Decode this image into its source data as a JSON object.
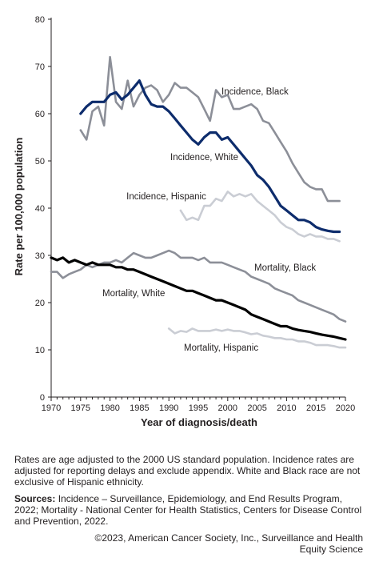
{
  "chart_data": {
    "type": "line",
    "xlabel": "Year of diagnosis/death",
    "ylabel": "Rate per 100,000 population",
    "xlim": [
      1970,
      2020
    ],
    "ylim": [
      0,
      80
    ],
    "x_ticks": [
      1970,
      1975,
      1980,
      1985,
      1990,
      1995,
      2000,
      2005,
      2010,
      2015,
      2020
    ],
    "y_ticks": [
      0,
      10,
      20,
      30,
      40,
      50,
      60,
      70,
      80
    ],
    "grid": false,
    "series": [
      {
        "name": "Incidence, Black",
        "color": "#8c8f98",
        "width": 2.6,
        "label_anchor": "start",
        "x": [
          1975,
          1976,
          1977,
          1978,
          1979,
          1980,
          1981,
          1982,
          1983,
          1984,
          1985,
          1986,
          1987,
          1988,
          1989,
          1990,
          1991,
          1992,
          1993,
          1994,
          1995,
          1996,
          1997,
          1998,
          1999,
          2000,
          2001,
          2002,
          2003,
          2004,
          2005,
          2006,
          2007,
          2008,
          2009,
          2010,
          2011,
          2012,
          2013,
          2014,
          2015,
          2016,
          2017,
          2018,
          2019
        ],
        "y": [
          56.5,
          54.5,
          60.5,
          61.5,
          57.5,
          72,
          62.5,
          61,
          67,
          61.5,
          64,
          65.5,
          66,
          65,
          62.5,
          64,
          66.5,
          65.5,
          65.5,
          64.5,
          63.5,
          61,
          58.5,
          65,
          63.5,
          64,
          61,
          61,
          61.5,
          62,
          61,
          58.5,
          58,
          56,
          54,
          52,
          49.5,
          47.5,
          45.5,
          44.5,
          44,
          44,
          41.5,
          41.5,
          41.5
        ]
      },
      {
        "name": "Incidence, White",
        "color": "#0d2c6c",
        "width": 3.2,
        "label_anchor": "start",
        "x": [
          1975,
          1976,
          1977,
          1978,
          1979,
          1980,
          1981,
          1982,
          1983,
          1984,
          1985,
          1986,
          1987,
          1988,
          1989,
          1990,
          1991,
          1992,
          1993,
          1994,
          1995,
          1996,
          1997,
          1998,
          1999,
          2000,
          2001,
          2002,
          2003,
          2004,
          2005,
          2006,
          2007,
          2008,
          2009,
          2010,
          2011,
          2012,
          2013,
          2014,
          2015,
          2016,
          2017,
          2018,
          2019
        ],
        "y": [
          60,
          61.5,
          62.5,
          62.5,
          62.5,
          64,
          64.5,
          63,
          64,
          65.5,
          67,
          64,
          62,
          61.5,
          61.5,
          60.5,
          59,
          57.5,
          56,
          54.5,
          53.5,
          55,
          56,
          56,
          54.5,
          55,
          53.5,
          52,
          50.5,
          49,
          47,
          46,
          44.5,
          42.5,
          40.5,
          39.5,
          38.5,
          37.5,
          37.5,
          37,
          36,
          35.5,
          35.2,
          35,
          35
        ]
      },
      {
        "name": "Incidence, Hispanic",
        "color": "#cacdd4",
        "width": 2.6,
        "label_anchor": "middle",
        "x": [
          1992,
          1993,
          1994,
          1995,
          1996,
          1997,
          1998,
          1999,
          2000,
          2001,
          2002,
          2003,
          2004,
          2005,
          2006,
          2007,
          2008,
          2009,
          2010,
          2011,
          2012,
          2013,
          2014,
          2015,
          2016,
          2017,
          2018,
          2019
        ],
        "y": [
          39.5,
          37.5,
          38,
          37.5,
          40.5,
          40.5,
          42,
          41.5,
          43.5,
          42.5,
          43,
          42.5,
          43,
          41.5,
          40.5,
          39.5,
          38.5,
          37,
          36,
          35.5,
          34.5,
          34,
          34.5,
          34,
          34,
          33.5,
          33.5,
          33
        ]
      },
      {
        "name": "Mortality, Black",
        "color": "#8c8f98",
        "width": 2.6,
        "label_anchor": "start",
        "x": [
          1970,
          1971,
          1972,
          1973,
          1974,
          1975,
          1976,
          1977,
          1978,
          1979,
          1980,
          1981,
          1982,
          1983,
          1984,
          1985,
          1986,
          1987,
          1988,
          1989,
          1990,
          1991,
          1992,
          1993,
          1994,
          1995,
          1996,
          1997,
          1998,
          1999,
          2000,
          2001,
          2002,
          2003,
          2004,
          2005,
          2006,
          2007,
          2008,
          2009,
          2010,
          2011,
          2012,
          2013,
          2014,
          2015,
          2016,
          2017,
          2018,
          2019,
          2020
        ],
        "y": [
          26.5,
          26.5,
          25.2,
          26,
          26.5,
          27,
          28,
          27.5,
          28,
          28.5,
          28.5,
          29,
          28.5,
          29.5,
          30.5,
          30,
          29.5,
          29.5,
          30,
          30.5,
          31,
          30.5,
          29.5,
          29.5,
          29.5,
          29,
          29.5,
          28.5,
          28.5,
          28.5,
          28,
          27.5,
          27,
          26.5,
          25.5,
          25,
          24.5,
          24,
          23,
          22.5,
          22,
          21.5,
          20.5,
          20,
          19.5,
          19,
          18.5,
          18,
          17.5,
          16.5,
          16
        ]
      },
      {
        "name": "Mortality, White",
        "color": "#000000",
        "width": 3.2,
        "label_anchor": "start",
        "x": [
          1970,
          1971,
          1972,
          1973,
          1974,
          1975,
          1976,
          1977,
          1978,
          1979,
          1980,
          1981,
          1982,
          1983,
          1984,
          1985,
          1986,
          1987,
          1988,
          1989,
          1990,
          1991,
          1992,
          1993,
          1994,
          1995,
          1996,
          1997,
          1998,
          1999,
          2000,
          2001,
          2002,
          2003,
          2004,
          2005,
          2006,
          2007,
          2008,
          2009,
          2010,
          2011,
          2012,
          2013,
          2014,
          2015,
          2016,
          2017,
          2018,
          2019,
          2020
        ],
        "y": [
          29.5,
          29,
          29.5,
          28.5,
          29,
          28.5,
          28,
          28.5,
          28,
          28,
          28,
          27.5,
          27.5,
          27,
          27,
          26.5,
          26,
          25.5,
          25,
          24.5,
          24,
          23.5,
          23,
          22.5,
          22.5,
          22,
          21.5,
          21,
          20.5,
          20.5,
          20,
          19.5,
          19,
          18.5,
          17.5,
          17,
          16.5,
          16,
          15.5,
          15,
          15,
          14.5,
          14.2,
          14,
          13.8,
          13.5,
          13.2,
          13,
          12.8,
          12.5,
          12.2
        ]
      },
      {
        "name": "Mortality, Hispanic",
        "color": "#cacdd4",
        "width": 2.6,
        "label_anchor": "start",
        "x": [
          1990,
          1991,
          1992,
          1993,
          1994,
          1995,
          1996,
          1997,
          1998,
          1999,
          2000,
          2001,
          2002,
          2003,
          2004,
          2005,
          2006,
          2007,
          2008,
          2009,
          2010,
          2011,
          2012,
          2013,
          2014,
          2015,
          2016,
          2017,
          2018,
          2019,
          2020
        ],
        "y": [
          14.5,
          13.5,
          14,
          13.8,
          14.5,
          14,
          14,
          14,
          14.3,
          14,
          14.3,
          14,
          14,
          13.7,
          13.3,
          13.5,
          13,
          12.8,
          12.5,
          12.5,
          12.2,
          12.2,
          11.8,
          11.8,
          11.5,
          11,
          11,
          11,
          10.8,
          10.5,
          10.5
        ]
      }
    ]
  },
  "footnote": {
    "note": "Rates are age adjusted to the 2000 US standard population. Incidence rates are adjusted for reporting delays and exclude appendix. White and Black race are not exclusive of Hispanic ethnicity.",
    "sources_label": "Sources:",
    "sources_text": "Incidence – Surveillance, Epidemiology, and End Results Program, 2022; Mortality - National Center for Health Statistics, Centers for Disease Control and Prevention, 2022.",
    "copyright": "©2023, American Cancer Society, Inc., Surveillance and Health Equity Science"
  }
}
